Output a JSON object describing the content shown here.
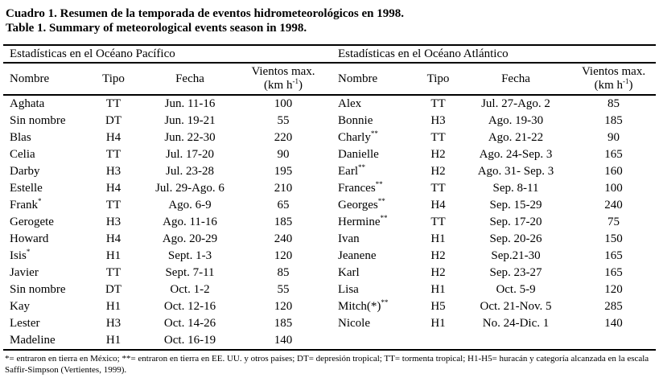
{
  "caption": {
    "spanish": "Cuadro 1. Resumen de la temporada de eventos hidrometeorológicos en 1998.",
    "english": "Table 1. Summary of meteorological events season in 1998."
  },
  "columns": {
    "name": "Nombre",
    "type": "Tipo",
    "date": "Fecha",
    "wind_line1": "Vientos max.",
    "wind_unit_prefix": "(km h",
    "wind_unit_sup": "-1",
    "wind_unit_suffix": ")"
  },
  "pacific": {
    "section_title": "Estadísticas en el Océano Pacífico",
    "rows": [
      {
        "name": "Aghata",
        "sup": "",
        "type": "TT",
        "date": "Jun. 11-16",
        "wind": "100"
      },
      {
        "name": "Sin nombre",
        "sup": "",
        "type": "DT",
        "date": "Jun. 19-21",
        "wind": "55"
      },
      {
        "name": "Blas",
        "sup": "",
        "type": "H4",
        "date": "Jun. 22-30",
        "wind": "220"
      },
      {
        "name": "Celia",
        "sup": "",
        "type": "TT",
        "date": "Jul. 17-20",
        "wind": "90"
      },
      {
        "name": "Darby",
        "sup": "",
        "type": "H3",
        "date": "Jul. 23-28",
        "wind": "195"
      },
      {
        "name": "Estelle",
        "sup": "",
        "type": "H4",
        "date": "Jul. 29-Ago. 6",
        "wind": "210"
      },
      {
        "name": "Frank",
        "sup": "*",
        "type": "TT",
        "date": "Ago. 6-9",
        "wind": "65"
      },
      {
        "name": "Gerogete",
        "sup": "",
        "type": "H3",
        "date": "Ago. 11-16",
        "wind": "185"
      },
      {
        "name": "Howard",
        "sup": "",
        "type": "H4",
        "date": "Ago. 20-29",
        "wind": "240"
      },
      {
        "name": "Isis",
        "sup": "*",
        "type": "H1",
        "date": "Sept. 1-3",
        "wind": "120"
      },
      {
        "name": "Javier",
        "sup": "",
        "type": "TT",
        "date": "Sept. 7-11",
        "wind": "85"
      },
      {
        "name": "Sin nombre",
        "sup": "",
        "type": "DT",
        "date": "Oct. 1-2",
        "wind": "55"
      },
      {
        "name": "Kay",
        "sup": "",
        "type": "H1",
        "date": "Oct. 12-16",
        "wind": "120"
      },
      {
        "name": "Lester",
        "sup": "",
        "type": "H3",
        "date": "Oct. 14-26",
        "wind": "185"
      },
      {
        "name": "Madeline",
        "sup": "",
        "type": "H1",
        "date": "Oct. 16-19",
        "wind": "140"
      }
    ]
  },
  "atlantic": {
    "section_title": "Estadísticas en el Océano Atlántico",
    "rows": [
      {
        "name": "Alex",
        "sup": "",
        "type": "TT",
        "date": "Jul. 27-Ago. 2",
        "wind": "85"
      },
      {
        "name": "Bonnie",
        "sup": "",
        "type": "H3",
        "date": "Ago. 19-30",
        "wind": "185"
      },
      {
        "name": "Charly",
        "sup": "**",
        "type": "TT",
        "date": "Ago. 21-22",
        "wind": "90"
      },
      {
        "name": "Danielle",
        "sup": "",
        "type": "H2",
        "date": "Ago. 24-Sep. 3",
        "wind": "165"
      },
      {
        "name": "Earl",
        "sup": "**",
        "type": "H2",
        "date": "Ago. 31- Sep. 3",
        "wind": "160"
      },
      {
        "name": "Frances",
        "sup": "**",
        "type": "TT",
        "date": "Sep. 8-11",
        "wind": "100"
      },
      {
        "name": "Georges",
        "sup": "**",
        "type": "H4",
        "date": "Sep. 15-29",
        "wind": "240"
      },
      {
        "name": "Hermine",
        "sup": "**",
        "type": "TT",
        "date": "Sep. 17-20",
        "wind": "75"
      },
      {
        "name": "Ivan",
        "sup": "",
        "type": "H1",
        "date": "Sep. 20-26",
        "wind": "150"
      },
      {
        "name": "Jeanene",
        "sup": "",
        "type": "H2",
        "date": "Sep.21-30",
        "wind": "165"
      },
      {
        "name": "Karl",
        "sup": "",
        "type": "H2",
        "date": "Sep. 23-27",
        "wind": "165"
      },
      {
        "name": "Lisa",
        "sup": "",
        "type": "H1",
        "date": "Oct. 5-9",
        "wind": "120"
      },
      {
        "name": "Mitch(*)",
        "sup": "**",
        "type": "H5",
        "date": "Oct. 21-Nov. 5",
        "wind": "285"
      },
      {
        "name": "Nicole",
        "sup": "",
        "type": "H1",
        "date": "No. 24-Dic. 1",
        "wind": "140"
      }
    ]
  },
  "footnote": "*= entraron en tierra en México; **= entraron en tierra en EE. UU. y otros países; DT= depresión tropical; TT= tormenta tropical; H1-H5= huracán y categoría alcanzada en la escala Saffir-Simpson (Vertientes, 1999)."
}
